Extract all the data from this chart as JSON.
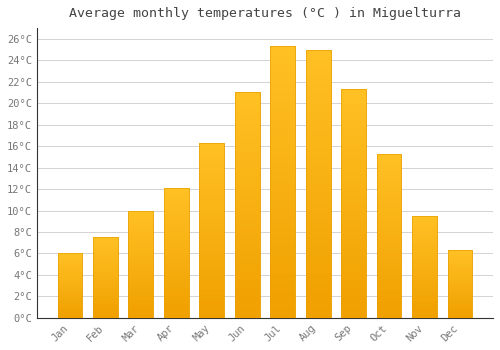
{
  "title": "Average monthly temperatures (°C ) in Miguelturra",
  "months": [
    "Jan",
    "Feb",
    "Mar",
    "Apr",
    "May",
    "Jun",
    "Jul",
    "Aug",
    "Sep",
    "Oct",
    "Nov",
    "Dec"
  ],
  "values": [
    6.0,
    7.5,
    10.0,
    12.1,
    16.3,
    21.0,
    25.3,
    25.0,
    21.3,
    15.3,
    9.5,
    6.3
  ],
  "bar_color_top": "#FFC125",
  "bar_color_bottom": "#F0A000",
  "bar_edge_color": "#E8A000",
  "background_color": "#FFFFFF",
  "grid_color": "#CCCCCC",
  "text_color": "#777777",
  "ylim": [
    0,
    27
  ],
  "yticks": [
    0,
    2,
    4,
    6,
    8,
    10,
    12,
    14,
    16,
    18,
    20,
    22,
    24,
    26
  ],
  "title_fontsize": 9.5,
  "tick_fontsize": 7.5,
  "bar_width": 0.7
}
